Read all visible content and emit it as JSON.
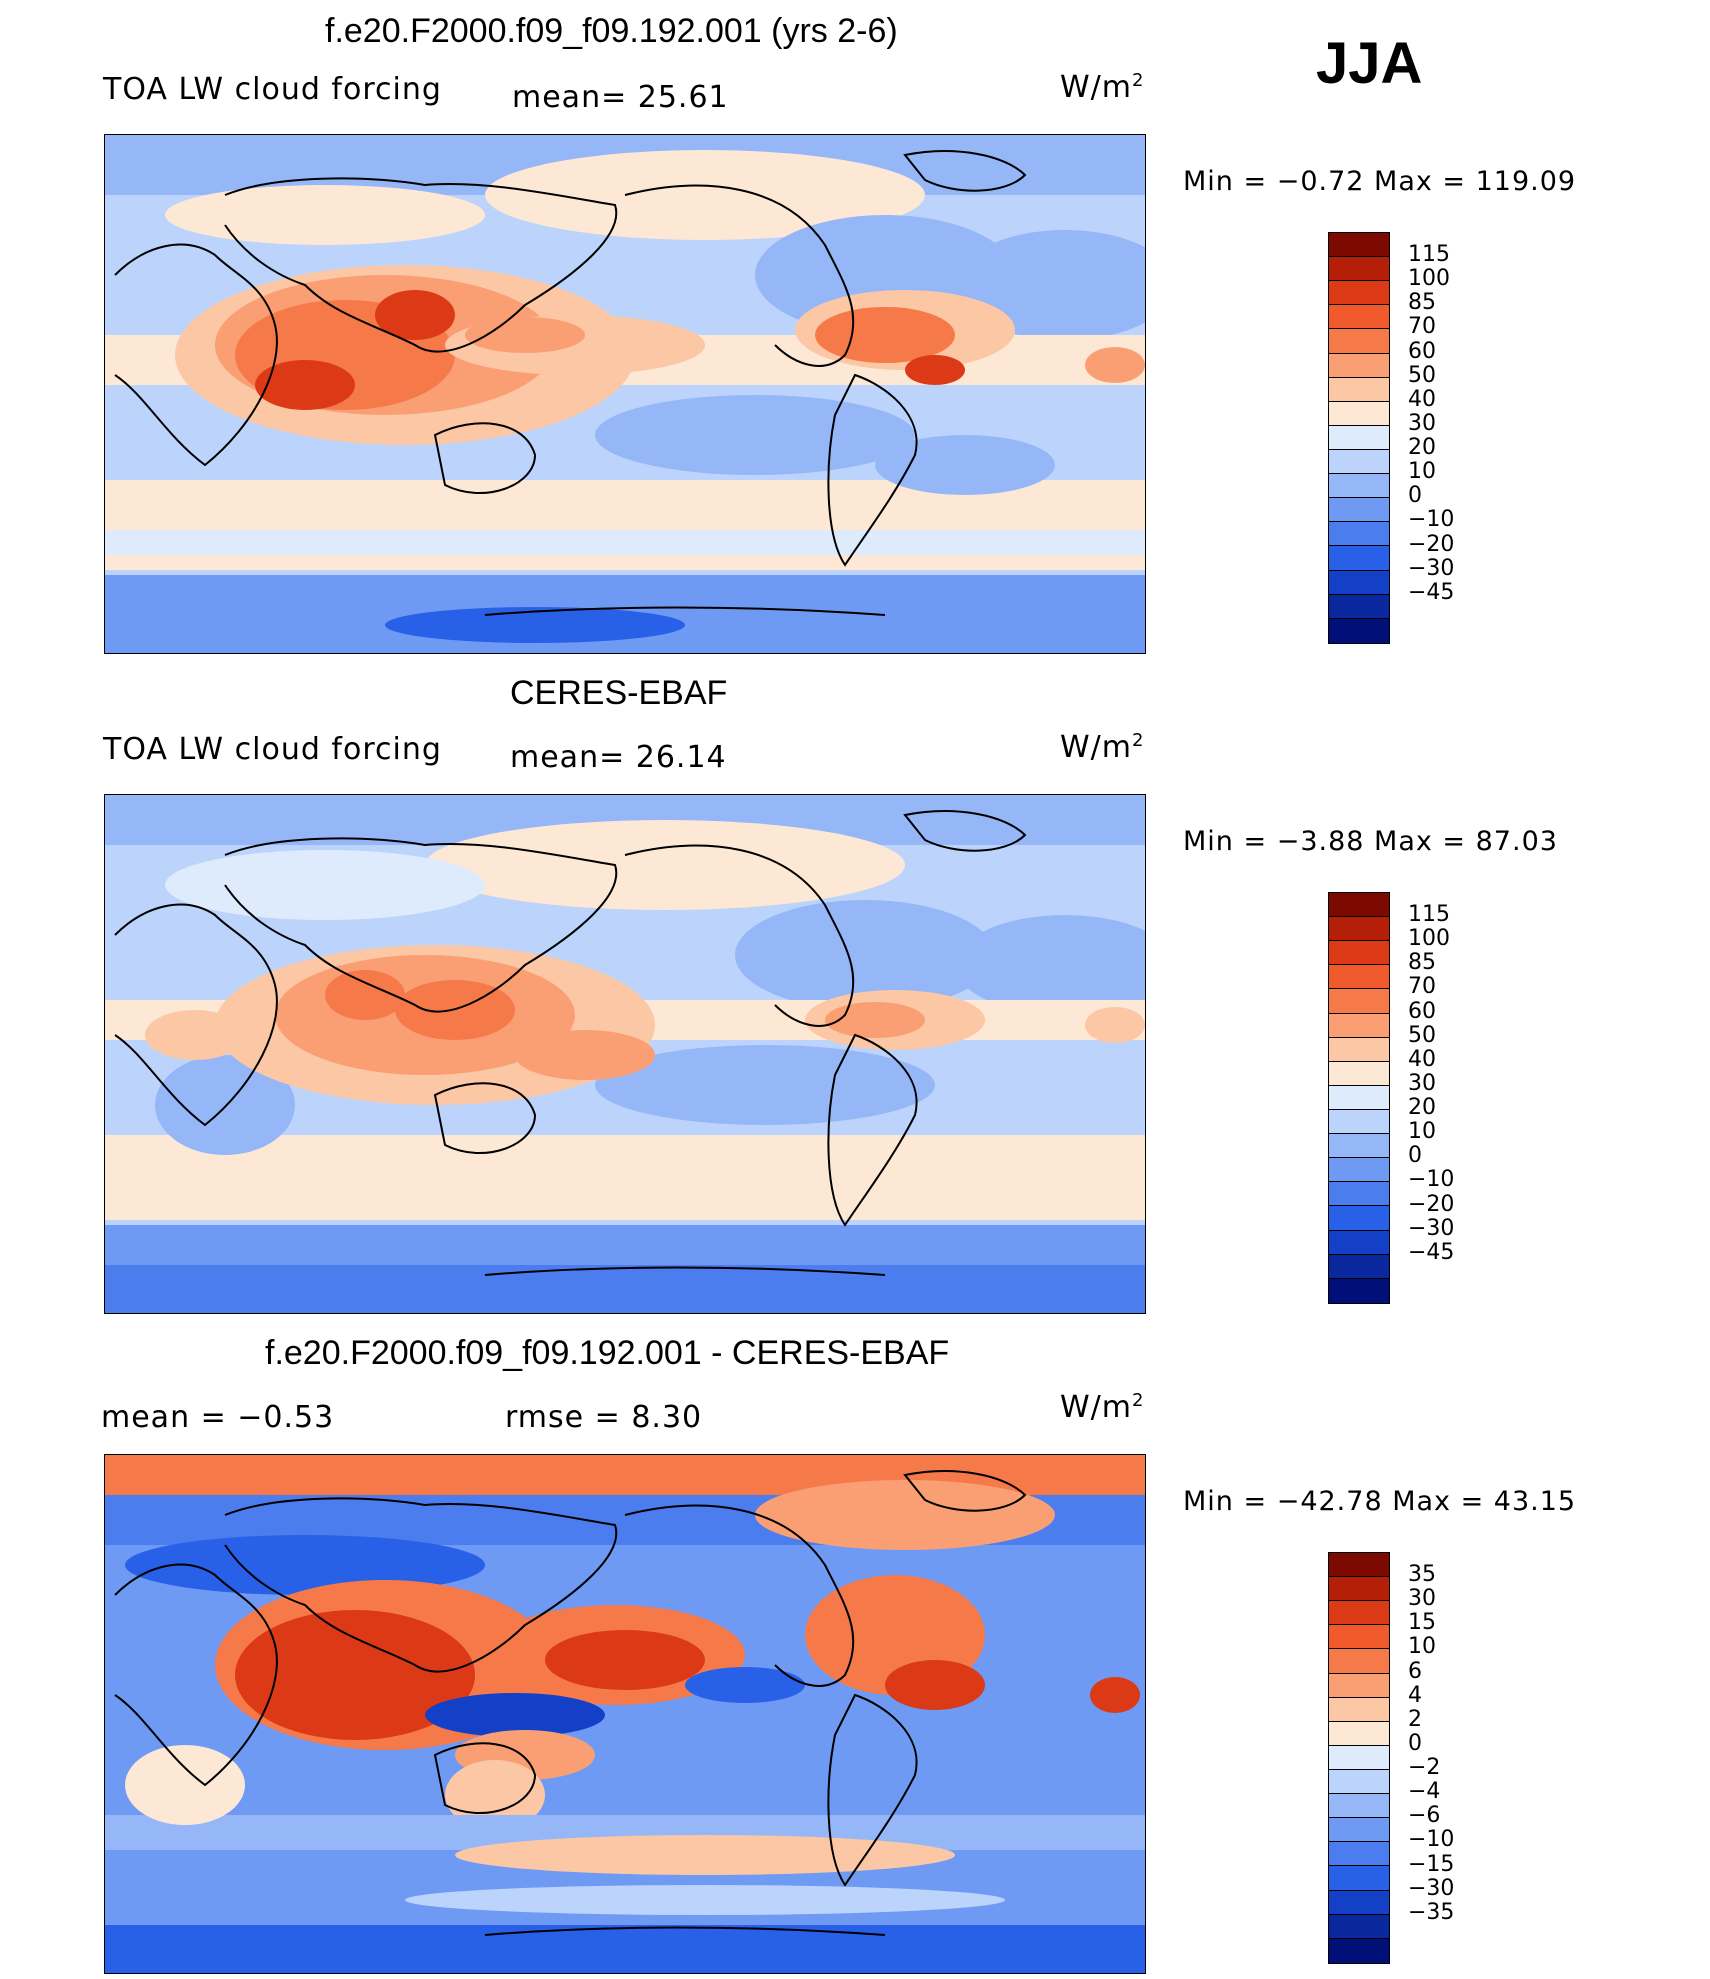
{
  "season": "JJA",
  "units_label": "W/m",
  "units_sup": "2",
  "palette_pos": [
    "#fde8d6",
    "#fbc7a5",
    "#f99f73",
    "#f6794a",
    "#f05a2c",
    "#dc3a16",
    "#b51f08",
    "#7d0a00"
  ],
  "palette_neg": [
    "#deebfd",
    "#bcd4fb",
    "#95b7f8",
    "#6f9af3",
    "#4b7dee",
    "#2960e8",
    "#1440c8",
    "#0a289e",
    "#001078"
  ],
  "panels": [
    {
      "title": "f.e20.F2000.f09_f09.192.001 (yrs 2-6)",
      "left_label": "TOA LW cloud forcing",
      "stat_text": "mean=   25.61",
      "min_max": "Min  =    −0.72  Max  =  119.09",
      "colorbar": [
        "115",
        "100",
        "85",
        "70",
        "60",
        "50",
        "40",
        "30",
        "20",
        "10",
        "0",
        "−10",
        "−20",
        "−30",
        "−45"
      ]
    },
    {
      "title": "CERES-EBAF",
      "left_label": "TOA LW cloud forcing",
      "stat_text": "mean=   26.14",
      "min_max": "Min  =    −3.88  Max  =    87.03",
      "colorbar": [
        "115",
        "100",
        "85",
        "70",
        "60",
        "50",
        "40",
        "30",
        "20",
        "10",
        "0",
        "−10",
        "−20",
        "−30",
        "−45"
      ]
    },
    {
      "title": "f.e20.F2000.f09_f09.192.001 - CERES-EBAF",
      "left_label": "mean  =    −0.53",
      "stat_text": "rmse  =     8.30",
      "min_max": "Min  = −42.78  Max  =    43.15",
      "colorbar": [
        "35",
        "30",
        "15",
        "10",
        "6",
        "4",
        "2",
        "0",
        "−2",
        "−4",
        "−6",
        "−10",
        "−15",
        "−30",
        "−35"
      ]
    }
  ]
}
